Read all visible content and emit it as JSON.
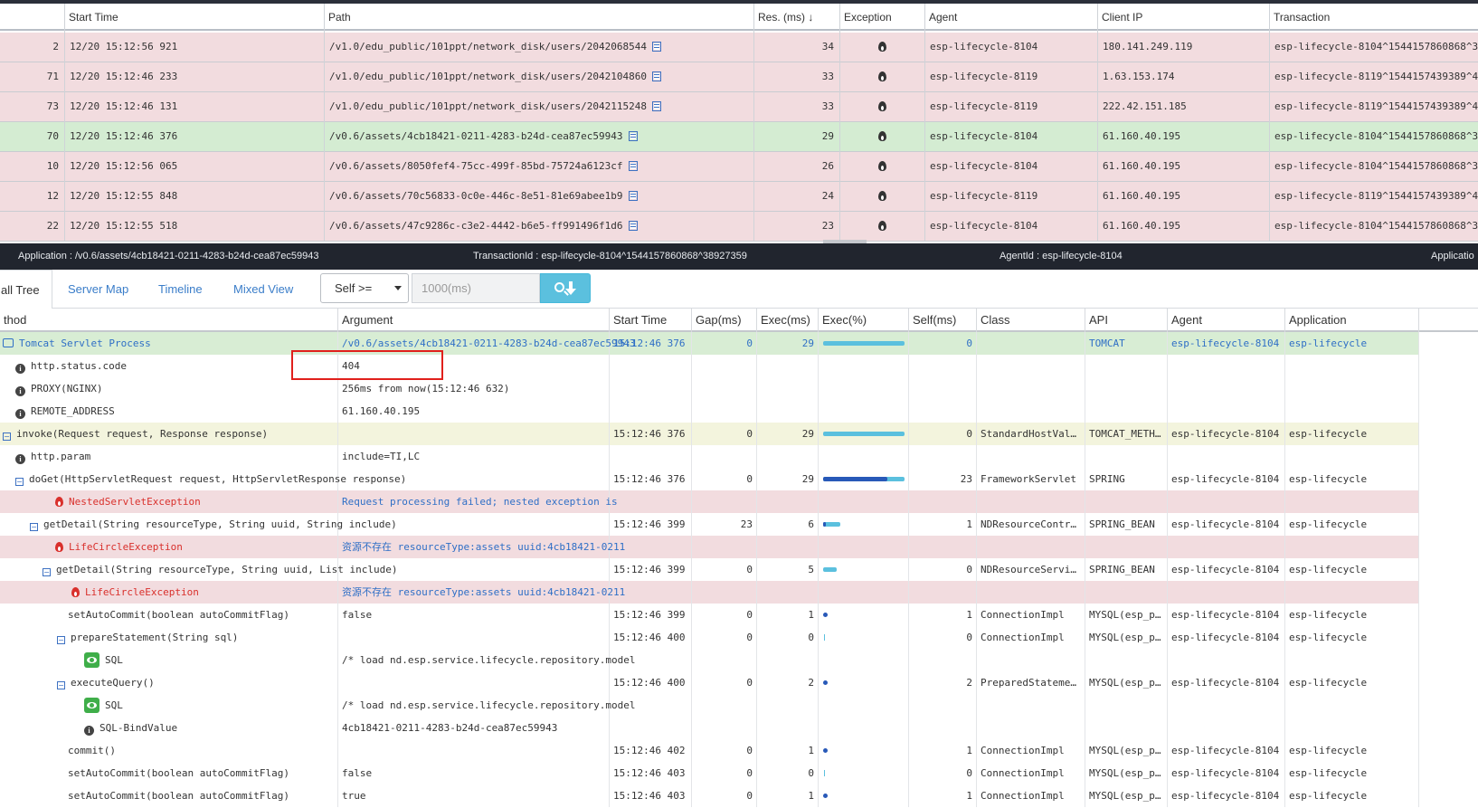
{
  "transactions": {
    "headers": [
      "",
      "Start Time",
      "Path",
      "Res. (ms)",
      "Exception",
      "Agent",
      "Client IP",
      "Transaction"
    ],
    "sort_indicator": "↓",
    "rows": [
      {
        "idx": "2",
        "start": "12/20 15:12:56 921",
        "path": "/v1.0/edu_public/101ppt/network_disk/users/2042068544",
        "res": "34",
        "agent": "esp-lifecycle-8104",
        "ip": "180.141.249.119",
        "txn": "esp-lifecycle-8104^1544157860868^3",
        "state": "pink"
      },
      {
        "idx": "71",
        "start": "12/20 15:12:46 233",
        "path": "/v1.0/edu_public/101ppt/network_disk/users/2042104860",
        "res": "33",
        "agent": "esp-lifecycle-8119",
        "ip": "1.63.153.174",
        "txn": "esp-lifecycle-8119^1544157439389^4",
        "state": "pink"
      },
      {
        "idx": "73",
        "start": "12/20 15:12:46 131",
        "path": "/v1.0/edu_public/101ppt/network_disk/users/2042115248",
        "res": "33",
        "agent": "esp-lifecycle-8119",
        "ip": "222.42.151.185",
        "txn": "esp-lifecycle-8119^1544157439389^4",
        "state": "pink"
      },
      {
        "idx": "70",
        "start": "12/20 15:12:46 376",
        "path": "/v0.6/assets/4cb18421-0211-4283-b24d-cea87ec59943",
        "res": "29",
        "agent": "esp-lifecycle-8104",
        "ip": "61.160.40.195",
        "txn": "esp-lifecycle-8104^1544157860868^3",
        "state": "green"
      },
      {
        "idx": "10",
        "start": "12/20 15:12:56 065",
        "path": "/v0.6/assets/8050fef4-75cc-499f-85bd-75724a6123cf",
        "res": "26",
        "agent": "esp-lifecycle-8104",
        "ip": "61.160.40.195",
        "txn": "esp-lifecycle-8104^1544157860868^3",
        "state": "pink"
      },
      {
        "idx": "12",
        "start": "12/20 15:12:55 848",
        "path": "/v0.6/assets/70c56833-0c0e-446c-8e51-81e69abee1b9",
        "res": "24",
        "agent": "esp-lifecycle-8119",
        "ip": "61.160.40.195",
        "txn": "esp-lifecycle-8119^1544157439389^4",
        "state": "pink"
      },
      {
        "idx": "22",
        "start": "12/20 15:12:55 518",
        "path": "/v0.6/assets/47c9286c-c3e2-4442-b6e5-ff991496f1d6",
        "res": "23",
        "agent": "esp-lifecycle-8104",
        "ip": "61.160.40.195",
        "txn": "esp-lifecycle-8104^1544157860868^3",
        "state": "pink"
      }
    ]
  },
  "infobar": {
    "application": "Application : /v0.6/assets/4cb18421-0211-4283-b24d-cea87ec59943",
    "transaction_id": "TransactionId : esp-lifecycle-8104^1544157860868^38927359",
    "agent_id": "AgentId : esp-lifecycle-8104",
    "application_cut": "Applicatio"
  },
  "tabs": {
    "call_tree": "all Tree",
    "server_map": "Server Map",
    "timeline": "Timeline",
    "mixed_view": "Mixed View",
    "filter_select": "Self >=",
    "filter_placeholder": "1000(ms)"
  },
  "calltree": {
    "headers": [
      "thod",
      "Argument",
      "Start Time",
      "Gap(ms)",
      "Exec(ms)",
      "Exec(%)",
      "Self(ms)",
      "Class",
      "API",
      "Agent",
      "Application"
    ],
    "rows": [
      {
        "method": "Tomcat Servlet Process",
        "icon": "server",
        "toggle": "",
        "arg": "/v0.6/assets/4cb18421-0211-4283-b24d-cea87ec59943",
        "start": "15:12:46 376",
        "gap": "0",
        "exec": "29",
        "exec_pct": 1.0,
        "self": "0",
        "cls": "",
        "api": "TOMCAT",
        "agent": "esp-lifecycle-8104",
        "app": "esp-lifecycle",
        "style": "green-blue"
      },
      {
        "method": "http.status.code",
        "icon": "info",
        "arg": "404",
        "start": "",
        "gap": "",
        "exec": "",
        "self": "",
        "cls": "",
        "api": "",
        "agent": "",
        "app": "",
        "style": "plain"
      },
      {
        "method": "PROXY(NGINX)",
        "icon": "info",
        "arg": "256ms from now(15:12:46 632)",
        "start": "",
        "gap": "",
        "exec": "",
        "self": "",
        "cls": "",
        "api": "",
        "agent": "",
        "app": "",
        "style": "plain"
      },
      {
        "method": "REMOTE_ADDRESS",
        "icon": "info",
        "arg": "61.160.40.195",
        "start": "",
        "gap": "",
        "exec": "",
        "self": "",
        "cls": "",
        "api": "",
        "agent": "",
        "app": "",
        "style": "plain"
      },
      {
        "method": "invoke(Request request, Response response)",
        "icon": "toggle",
        "arg": "",
        "start": "15:12:46 376",
        "gap": "0",
        "exec": "29",
        "exec_pct": 1.0,
        "self": "0",
        "cls": "StandardHostVal…",
        "api": "TOMCAT_METH…",
        "agent": "esp-lifecycle-8104",
        "app": "esp-lifecycle",
        "style": "yellow"
      },
      {
        "method": "http.param",
        "icon": "info",
        "arg": "include=TI,LC",
        "start": "",
        "gap": "",
        "exec": "",
        "self": "",
        "cls": "",
        "api": "",
        "agent": "",
        "app": "",
        "style": "plain"
      },
      {
        "method": "doGet(HttpServletRequest request, HttpServletResponse response)",
        "icon": "toggle",
        "arg": "",
        "start": "15:12:46 376",
        "gap": "0",
        "exec": "29",
        "exec_pct": 1.0,
        "self_pct": 0.79,
        "self": "23",
        "cls": "FrameworkServlet",
        "api": "SPRING",
        "agent": "esp-lifecycle-8104",
        "app": "esp-lifecycle",
        "style": "plain"
      },
      {
        "method": "NestedServletException",
        "icon": "flame",
        "arg": "Request processing failed; nested exception is",
        "start": "",
        "gap": "",
        "exec": "",
        "self": "",
        "cls": "",
        "api": "",
        "agent": "",
        "app": "",
        "style": "pink"
      },
      {
        "method": "getDetail(String resourceType, String uuid, String include)",
        "icon": "toggle",
        "arg": "",
        "start": "15:12:46 399",
        "gap": "23",
        "exec": "6",
        "exec_pct": 0.21,
        "self_pct": 0.03,
        "self": "1",
        "cls": "NDResourceContr…",
        "api": "SPRING_BEAN",
        "agent": "esp-lifecycle-8104",
        "app": "esp-lifecycle",
        "style": "plain"
      },
      {
        "method": "LifeCircleException",
        "icon": "flame",
        "arg": "资源不存在 resourceType:assets uuid:4cb18421-0211",
        "start": "",
        "gap": "",
        "exec": "",
        "self": "",
        "cls": "",
        "api": "",
        "agent": "",
        "app": "",
        "style": "pink"
      },
      {
        "method": "getDetail(String resourceType, String uuid, List include)",
        "icon": "toggle",
        "arg": "",
        "start": "15:12:46 399",
        "gap": "0",
        "exec": "5",
        "exec_pct": 0.17,
        "self": "0",
        "cls": "NDResourceServi…",
        "api": "SPRING_BEAN",
        "agent": "esp-lifecycle-8104",
        "app": "esp-lifecycle",
        "style": "plain"
      },
      {
        "method": "LifeCircleException",
        "icon": "flame",
        "arg": "资源不存在 resourceType:assets uuid:4cb18421-0211",
        "start": "",
        "gap": "",
        "exec": "",
        "self": "",
        "cls": "",
        "api": "",
        "agent": "",
        "app": "",
        "style": "pink"
      },
      {
        "method": "setAutoCommit(boolean autoCommitFlag)",
        "icon": "none",
        "arg": "false",
        "start": "15:12:46 399",
        "gap": "0",
        "exec": "1",
        "exec_pct": 0.03,
        "self": "1",
        "cls": "ConnectionImpl",
        "api": "MYSQL(esp_p…",
        "agent": "esp-lifecycle-8104",
        "app": "esp-lifecycle",
        "style": "plain"
      },
      {
        "method": "prepareStatement(String sql)",
        "icon": "toggle",
        "arg": "",
        "start": "15:12:46 400",
        "gap": "0",
        "exec": "0",
        "exec_pct": 0,
        "self": "0",
        "cls": "ConnectionImpl",
        "api": "MYSQL(esp_p…",
        "agent": "esp-lifecycle-8104",
        "app": "esp-lifecycle",
        "style": "plain"
      },
      {
        "method": "SQL",
        "icon": "eye",
        "arg": "/* load nd.esp.service.lifecycle.repository.model",
        "start": "",
        "gap": "",
        "exec": "",
        "self": "",
        "cls": "",
        "api": "",
        "agent": "",
        "app": "",
        "style": "plain"
      },
      {
        "method": "executeQuery()",
        "icon": "toggle",
        "arg": "",
        "start": "15:12:46 400",
        "gap": "0",
        "exec": "2",
        "exec_pct": 0.07,
        "self": "2",
        "cls": "PreparedStateme…",
        "api": "MYSQL(esp_p…",
        "agent": "esp-lifecycle-8104",
        "app": "esp-lifecycle",
        "style": "plain"
      },
      {
        "method": "SQL",
        "icon": "eye",
        "arg": "/* load nd.esp.service.lifecycle.repository.model",
        "start": "",
        "gap": "",
        "exec": "",
        "self": "",
        "cls": "",
        "api": "",
        "agent": "",
        "app": "",
        "style": "plain"
      },
      {
        "method": "SQL-BindValue",
        "icon": "info",
        "arg": "4cb18421-0211-4283-b24d-cea87ec59943",
        "start": "",
        "gap": "",
        "exec": "",
        "self": "",
        "cls": "",
        "api": "",
        "agent": "",
        "app": "",
        "style": "plain"
      },
      {
        "method": "commit()",
        "icon": "none",
        "arg": "",
        "start": "15:12:46 402",
        "gap": "0",
        "exec": "1",
        "exec_pct": 0.03,
        "self": "1",
        "cls": "ConnectionImpl",
        "api": "MYSQL(esp_p…",
        "agent": "esp-lifecycle-8104",
        "app": "esp-lifecycle",
        "style": "plain"
      },
      {
        "method": "setAutoCommit(boolean autoCommitFlag)",
        "icon": "none",
        "arg": "false",
        "start": "15:12:46 403",
        "gap": "0",
        "exec": "0",
        "exec_pct": 0,
        "self": "0",
        "cls": "ConnectionImpl",
        "api": "MYSQL(esp_p…",
        "agent": "esp-lifecycle-8104",
        "app": "esp-lifecycle",
        "style": "plain"
      },
      {
        "method": "setAutoCommit(boolean autoCommitFlag)",
        "icon": "none",
        "arg": "true",
        "start": "15:12:46 403",
        "gap": "0",
        "exec": "1",
        "exec_pct": 0.03,
        "self": "1",
        "cls": "ConnectionImpl",
        "api": "MYSQL(esp_p…",
        "agent": "esp-lifecycle-8104",
        "app": "esp-lifecycle",
        "style": "plain"
      }
    ]
  },
  "colors": {
    "accent": "#5bc0de",
    "link": "#2f6fc6",
    "error": "#d9302c",
    "row_error": "#f2dcdf",
    "row_selected": "#d4ecd2",
    "highlight": "#e0201c"
  }
}
